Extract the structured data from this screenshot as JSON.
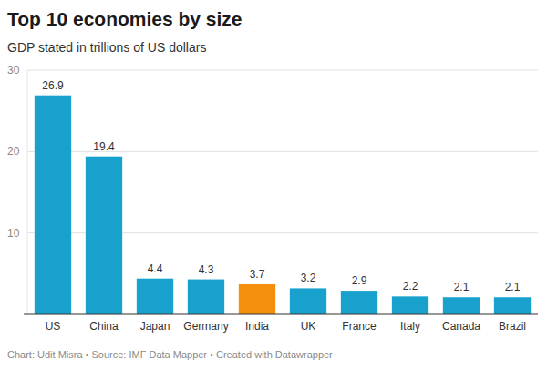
{
  "chart_data": {
    "type": "bar",
    "title": "Top 10 economies by size",
    "subtitle": "GDP stated in trillions of US dollars",
    "categories": [
      "US",
      "China",
      "Japan",
      "Germany",
      "India",
      "UK",
      "France",
      "Italy",
      "Canada",
      "Brazil"
    ],
    "values": [
      26.9,
      19.4,
      4.4,
      4.3,
      3.7,
      3.2,
      2.9,
      2.2,
      2.1,
      2.1
    ],
    "colors": [
      "#18a1cd",
      "#18a1cd",
      "#18a1cd",
      "#18a1cd",
      "#f5900e",
      "#18a1cd",
      "#18a1cd",
      "#18a1cd",
      "#18a1cd",
      "#18a1cd"
    ],
    "ylim": [
      0,
      30
    ],
    "yticks": [
      10,
      20,
      30
    ],
    "grid": true,
    "data_labels": true,
    "footer": "Chart: Udit Misra • Source: IMF Data Mapper • Created with Datawrapper"
  }
}
